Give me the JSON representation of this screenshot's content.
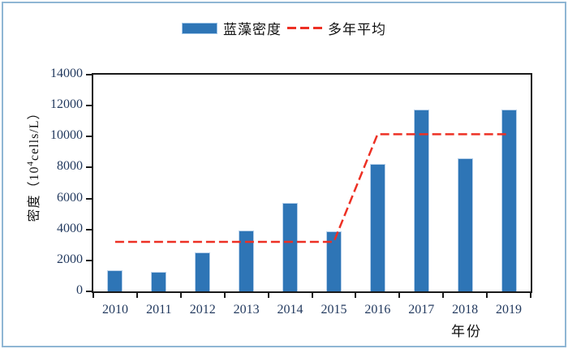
{
  "legend": {
    "bar_label": "蓝藻密度",
    "line_label": "多年平均"
  },
  "axes": {
    "y_title_prefix": "密度（10",
    "y_title_sup": "4",
    "y_title_suffix": "cells/L）",
    "x_title": "年份"
  },
  "colors": {
    "bar": "#2E75B6",
    "bar_border": "#B7D0EA",
    "line": "#ED3024",
    "tick_text": "#233A5F",
    "axis": "#1a1a1a",
    "frame": "#8FB6D4"
  },
  "chart_data": {
    "type": "bar",
    "title": "",
    "categories": [
      "2010",
      "2011",
      "2012",
      "2013",
      "2014",
      "2015",
      "2016",
      "2017",
      "2018",
      "2019"
    ],
    "series": [
      {
        "name": "蓝藻密度",
        "type": "bar",
        "color": "#2E75B6",
        "values": [
          1350,
          1250,
          2500,
          3950,
          5700,
          3900,
          8250,
          11750,
          8600,
          11750
        ]
      },
      {
        "name": "多年平均",
        "type": "line",
        "style": "dashed",
        "color": "#ED3024",
        "values": [
          3200,
          3200,
          3200,
          3200,
          3200,
          3200,
          10150,
          10150,
          10150,
          10150
        ]
      }
    ],
    "xlabel": "年份",
    "ylabel": "密度（10⁴cells/L）",
    "ylim": [
      0,
      14000
    ],
    "ytick_step": 2000,
    "grid": false,
    "legend_position": "top"
  }
}
